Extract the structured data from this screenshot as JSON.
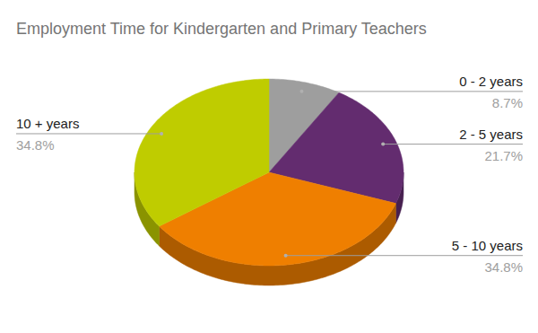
{
  "chart_data": {
    "type": "pie",
    "title": "Employment Time for Kindergarten and Primary Teachers",
    "categories": [
      "0 - 2 years",
      "2 - 5 years",
      "5 - 10 years",
      "10 + years"
    ],
    "values": [
      8.7,
      21.7,
      34.8,
      34.8
    ],
    "value_labels": [
      "8.7%",
      "21.7%",
      "34.8%",
      "34.8%"
    ],
    "colors": [
      "#9e9e9e",
      "#632c6f",
      "#ef7f00",
      "#bfcc00"
    ],
    "data_labels": true
  }
}
